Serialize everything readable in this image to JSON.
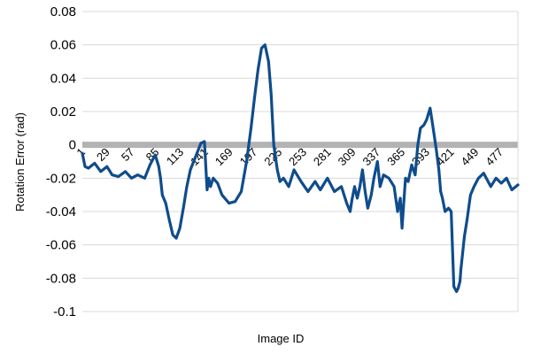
{
  "chart_data": {
    "type": "line",
    "title": "",
    "xlabel": "Image ID",
    "ylabel": "Rotation Error (rad)",
    "ylim": [
      -0.1,
      0.08
    ],
    "yticks": [
      0.08,
      0.06,
      0.04,
      0.02,
      0,
      -0.02,
      -0.04,
      -0.06,
      -0.08,
      -0.1
    ],
    "ytick_labels": [
      "0.08",
      "0.06",
      "0.04",
      "0.02",
      "0",
      "-0.02",
      "-0.04",
      "-0.06",
      "-0.08",
      "-0.1"
    ],
    "xlim": [
      1,
      497
    ],
    "xtick_labels": [
      "1",
      "29",
      "57",
      "85",
      "113",
      "141",
      "169",
      "197",
      "225",
      "253",
      "281",
      "309",
      "337",
      "365",
      "393",
      "421",
      "449",
      "477"
    ],
    "grid": true,
    "colors": {
      "series": "#0f4c8c",
      "zero_line": "#b3b3b3",
      "grid": "#d9d9d9"
    },
    "series": [
      {
        "x": [
          1,
          4,
          8,
          15,
          22,
          29,
          35,
          42,
          50,
          57,
          64,
          72,
          78,
          84,
          88,
          90,
          92,
          96,
          100,
          104,
          108,
          112,
          116,
          120,
          124,
          130,
          136,
          140,
          143,
          145,
          147,
          150,
          155,
          160,
          168,
          175,
          182,
          188,
          193,
          197,
          201,
          205,
          209,
          213,
          216,
          219,
          223,
          226,
          230,
          236,
          242,
          250,
          258,
          266,
          272,
          280,
          288,
          296,
          302,
          306,
          308,
          311,
          314,
          317,
          320,
          323,
          326,
          330,
          333,
          337,
          340,
          344,
          350,
          356,
          360,
          363,
          365,
          367,
          369,
          372,
          376,
          380,
          383,
          386,
          390,
          393,
          397,
          401,
          404,
          407,
          409,
          411,
          414,
          418,
          421,
          424,
          427,
          429,
          431,
          432,
          434,
          436,
          439,
          443,
          447,
          452,
          458,
          466,
          472,
          478,
          484,
          490,
          497
        ],
        "y": [
          -0.005,
          -0.013,
          -0.014,
          -0.011,
          -0.016,
          -0.013,
          -0.018,
          -0.019,
          -0.016,
          -0.02,
          -0.018,
          -0.02,
          -0.012,
          -0.006,
          -0.013,
          -0.02,
          -0.03,
          -0.035,
          -0.045,
          -0.054,
          -0.056,
          -0.05,
          -0.038,
          -0.025,
          -0.015,
          -0.007,
          0.001,
          0.002,
          -0.027,
          -0.02,
          -0.025,
          -0.02,
          -0.023,
          -0.03,
          -0.035,
          -0.034,
          -0.028,
          -0.01,
          0.01,
          0.028,
          0.045,
          0.058,
          0.06,
          0.05,
          0.03,
          0.0,
          -0.015,
          -0.022,
          -0.02,
          -0.025,
          -0.015,
          -0.022,
          -0.028,
          -0.022,
          -0.027,
          -0.02,
          -0.028,
          -0.025,
          -0.035,
          -0.04,
          -0.033,
          -0.025,
          -0.032,
          -0.025,
          -0.015,
          -0.028,
          -0.038,
          -0.03,
          -0.02,
          -0.01,
          -0.025,
          -0.018,
          -0.02,
          -0.025,
          -0.04,
          -0.032,
          -0.05,
          -0.035,
          -0.02,
          -0.022,
          -0.012,
          -0.018,
          0.0,
          0.01,
          0.012,
          0.015,
          0.022,
          0.008,
          -0.003,
          -0.015,
          -0.028,
          -0.032,
          -0.04,
          -0.038,
          -0.04,
          -0.085,
          -0.088,
          -0.086,
          -0.082,
          -0.075,
          -0.065,
          -0.055,
          -0.045,
          -0.03,
          -0.025,
          -0.02,
          -0.017,
          -0.025,
          -0.02,
          -0.023,
          -0.02,
          -0.027,
          -0.024
        ]
      }
    ]
  }
}
